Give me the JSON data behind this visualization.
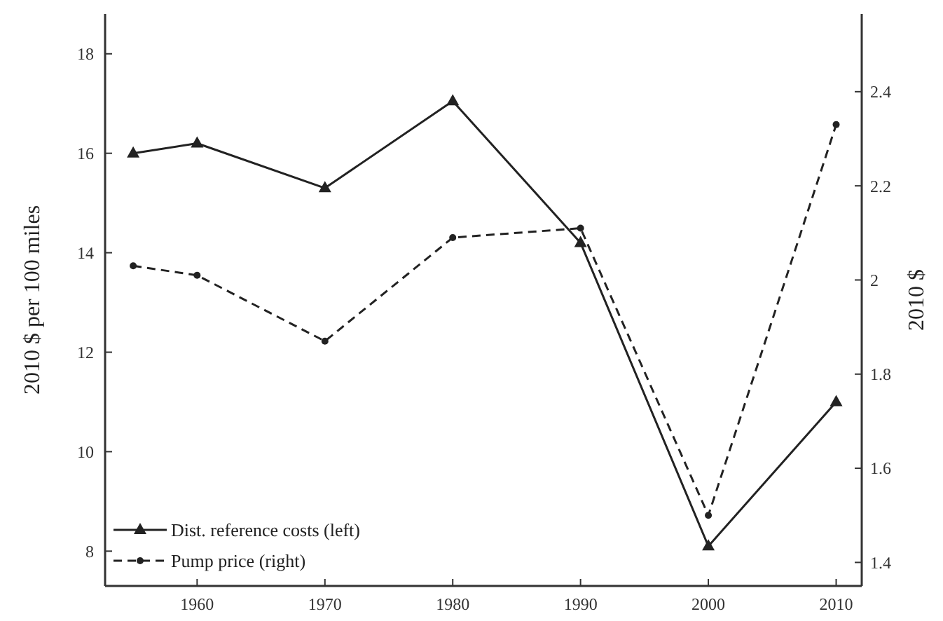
{
  "chart_data": {
    "type": "line",
    "ylabel": "2010 $ per 100 miles",
    "y2label": "2010 $",
    "x": [
      1955,
      1960,
      1970,
      1980,
      1990,
      2000,
      2010
    ],
    "xlim": [
      1952.8,
      2012
    ],
    "xticks": [
      1960,
      1970,
      1980,
      1990,
      2000,
      2010
    ],
    "ylim": [
      7.3,
      18.8
    ],
    "yticks": [
      8,
      10,
      12,
      14,
      16,
      18
    ],
    "y2lim": [
      1.35,
      2.565
    ],
    "y2ticks": [
      1.4,
      1.6,
      1.8,
      2,
      2.2,
      2.4
    ],
    "legend": "bottom left",
    "grid": false,
    "series": [
      {
        "name": "Dist. reference costs (left)",
        "color": "#222222",
        "marker": "triangle",
        "line_style": "solid",
        "values": [
          16.0,
          16.2,
          15.3,
          17.05,
          14.2,
          8.1,
          11.0
        ]
      },
      {
        "name": "Pump price (right)",
        "color": "#222222",
        "marker": "circle",
        "line_style": "dashed",
        "axis": "y2",
        "values": [
          2.03,
          2.01,
          1.87,
          2.09,
          2.11,
          1.5,
          2.33
        ]
      }
    ]
  }
}
